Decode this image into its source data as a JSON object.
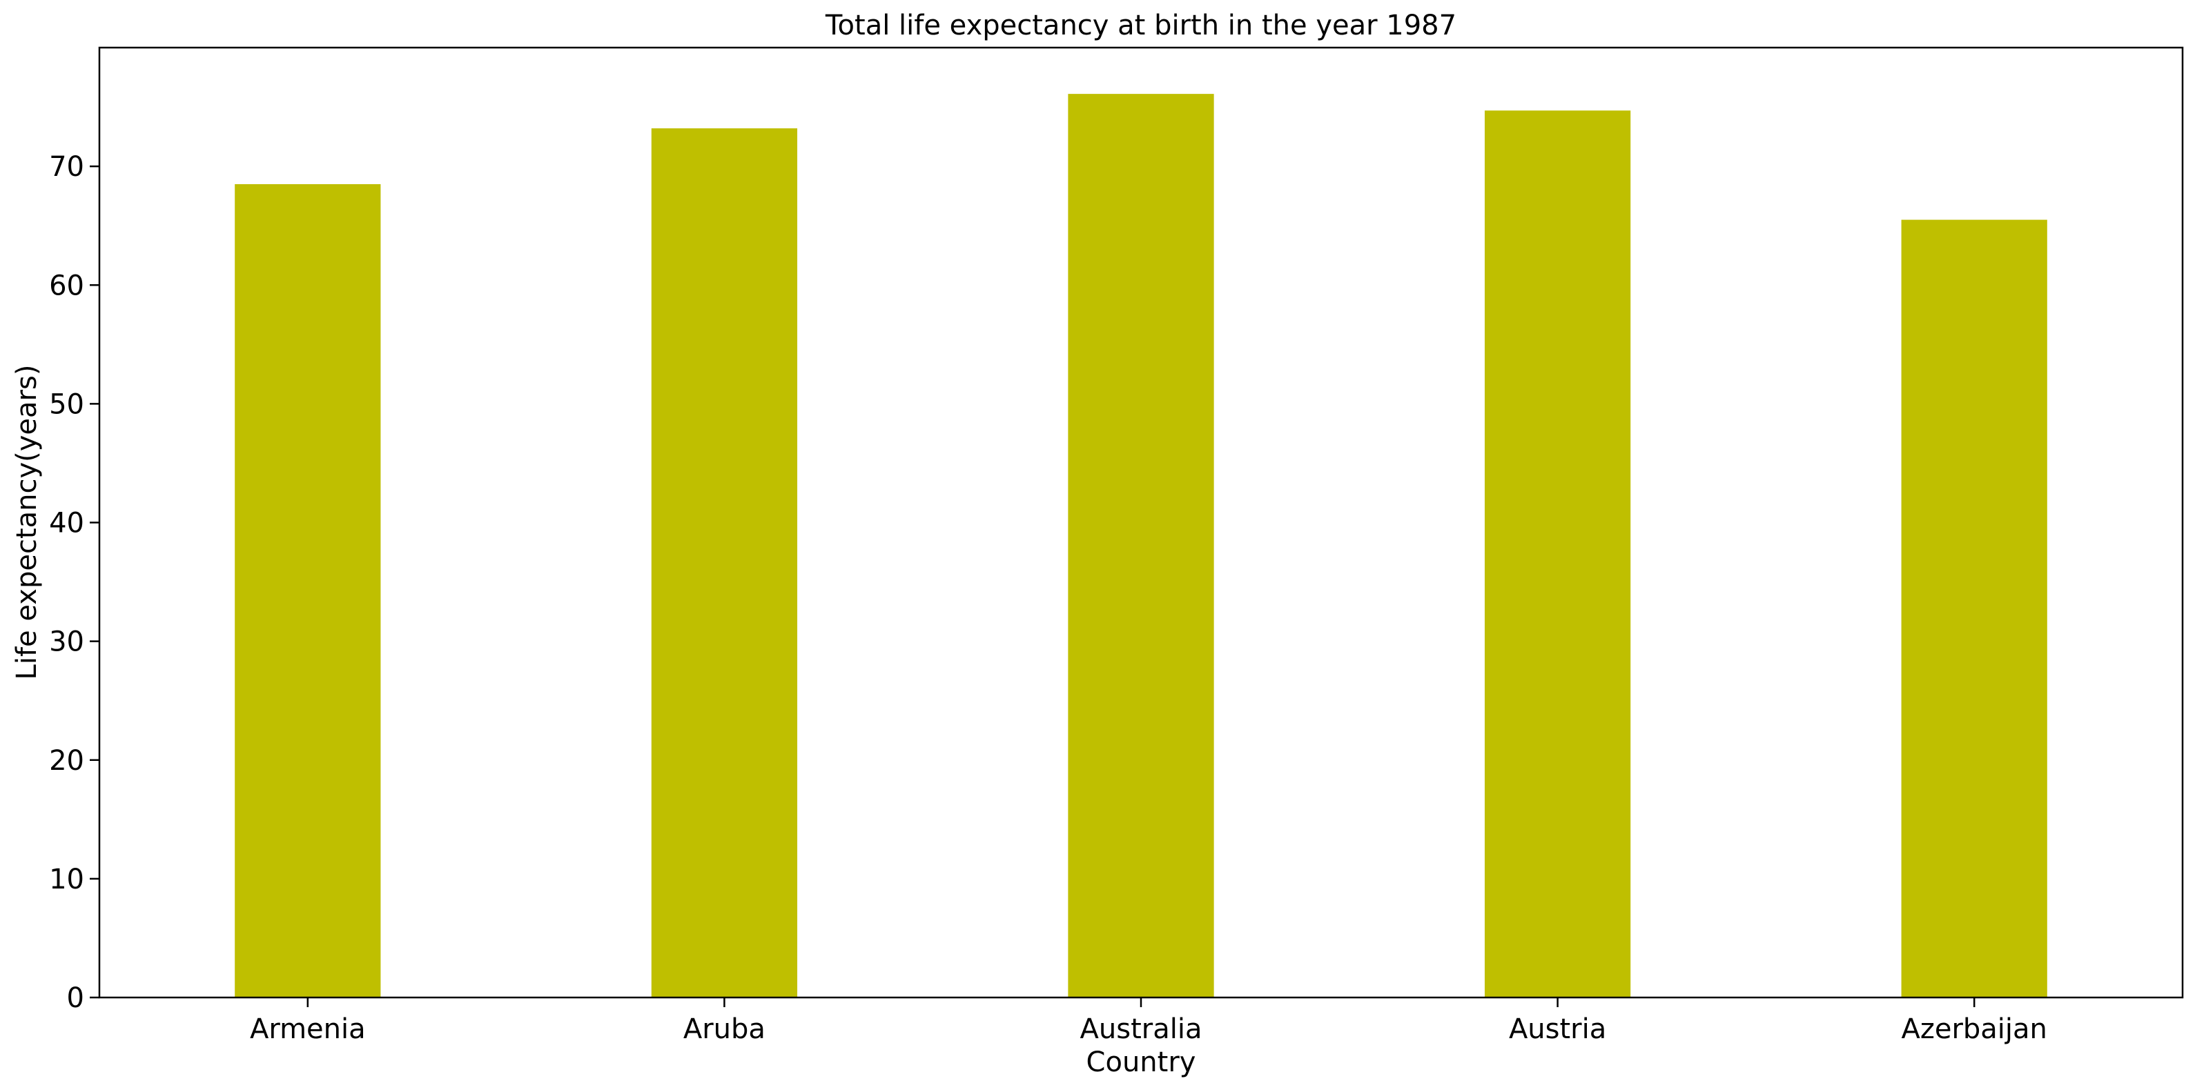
{
  "chart_data": {
    "type": "bar",
    "title": "Total life expectancy at birth in the year 1987",
    "xlabel": "Country",
    "ylabel": "Life expectancy(years)",
    "categories": [
      "Armenia",
      "Aruba",
      "Australia",
      "Austria",
      "Azerbaijan"
    ],
    "values": [
      68.5,
      73.2,
      76.1,
      74.7,
      65.5
    ],
    "ylim": [
      0,
      80
    ],
    "yticks": [
      0,
      10,
      20,
      30,
      40,
      50,
      60,
      70
    ],
    "grid": false,
    "legend": "none",
    "bar_color": "#bfbf00"
  }
}
